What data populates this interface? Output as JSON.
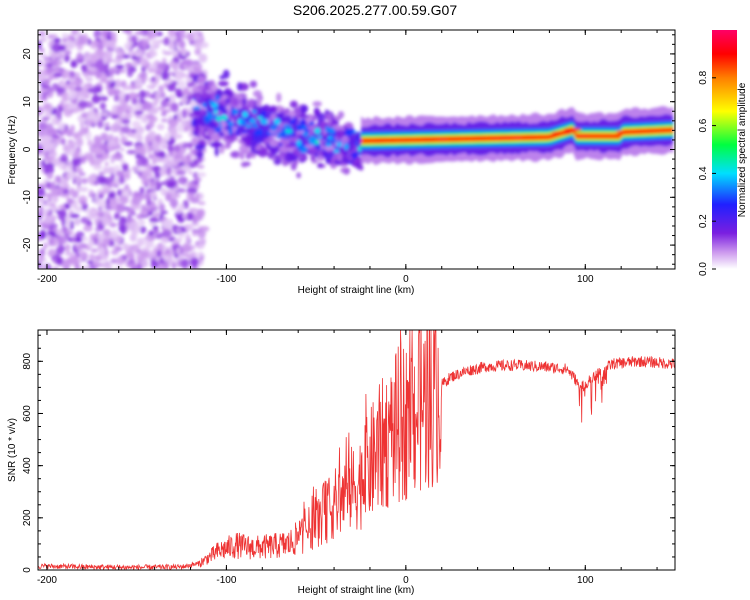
{
  "title": "S206.2025.277.00.59.G07",
  "chart_data": [
    {
      "type": "heatmap",
      "name": "spectrogram",
      "xlabel": "Height of straight line (km)",
      "ylabel": "Frequency (Hz)",
      "xlim": [
        -205,
        150
      ],
      "ylim": [
        -25,
        25
      ],
      "xticks": [
        -200,
        -100,
        0,
        100
      ],
      "yticks": [
        -20,
        -10,
        0,
        10,
        20
      ],
      "colorbar": {
        "label": "Normalized spectral amplitude",
        "range": [
          0,
          1
        ],
        "ticks": [
          "0.0",
          "0.2",
          "0.4",
          "0.6",
          "0.8"
        ],
        "tick_values": [
          0,
          0.2,
          0.4,
          0.6,
          0.8
        ],
        "colors": [
          "#ffffff",
          "#cc99ee",
          "#7a1fe0",
          "#2020ff",
          "#00dfff",
          "#00ff40",
          "#ffff00",
          "#ff7f00",
          "#ff0000",
          "#ff0066"
        ]
      },
      "features": [
        {
          "region": "scattered noise",
          "x_range": [
            -205,
            -115
          ],
          "freq_range": [
            -25,
            25
          ],
          "amplitude": 0.1
        },
        {
          "region": "emerging signal",
          "x_range": [
            -115,
            -25
          ],
          "freq_center": [
            8,
            0
          ],
          "amplitude": 0.3
        },
        {
          "region": "coherent tone",
          "x_range": [
            -25,
            150
          ],
          "freq_center": [
            1.8,
            4
          ],
          "amplitude": 0.9
        }
      ]
    },
    {
      "type": "line",
      "name": "snr",
      "xlabel": "Height of straight line (km)",
      "ylabel": "SNR (10 * v/v)",
      "xlim": [
        -205,
        150
      ],
      "ylim": [
        0,
        920
      ],
      "xticks": [
        -200,
        -100,
        0,
        100
      ],
      "yticks": [
        0,
        200,
        400,
        600,
        800
      ],
      "color": "#ee3333",
      "series": [
        {
          "name": "SNR",
          "x": [
            -205,
            -180,
            -150,
            -125,
            -115,
            -105,
            -95,
            -85,
            -75,
            -65,
            -55,
            -45,
            -35,
            -25,
            -15,
            -5,
            5,
            15,
            25,
            35,
            45,
            60,
            75,
            90,
            98,
            105,
            115,
            130,
            150
          ],
          "values": [
            15,
            12,
            10,
            12,
            25,
            70,
            95,
            85,
            90,
            100,
            150,
            220,
            280,
            340,
            460,
            550,
            600,
            680,
            740,
            765,
            780,
            785,
            780,
            770,
            700,
            740,
            790,
            800,
            790
          ]
        }
      ]
    }
  ]
}
